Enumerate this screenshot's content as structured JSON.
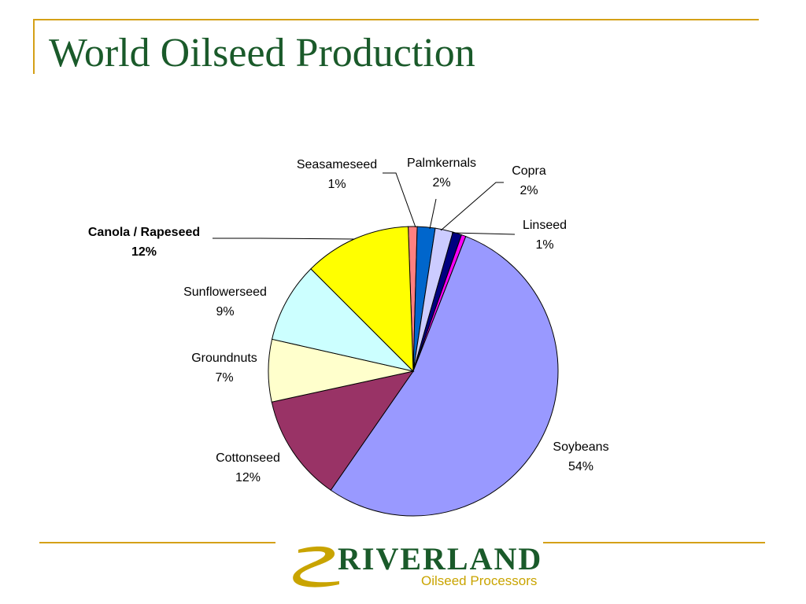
{
  "slide": {
    "title": "World Oilseed Production"
  },
  "logo": {
    "name": "RIVERLAND",
    "tagline": "Oilseed Processors",
    "colors": {
      "primary": "#1a5a2a",
      "accent": "#c9a400"
    }
  },
  "colors": {
    "frame": "#d4a017",
    "title": "#1a5a2a"
  },
  "chart_data": {
    "type": "pie",
    "start_angle_deg": -2,
    "direction": "clockwise",
    "slices": [
      {
        "label": "Seasameseed",
        "value": 1,
        "pct_label": "1%",
        "color": "#ff8080"
      },
      {
        "label": "Palmkernals",
        "value": 2,
        "pct_label": "2%",
        "color": "#0066cc"
      },
      {
        "label": "Copra",
        "value": 2,
        "pct_label": "2%",
        "color": "#ccccff"
      },
      {
        "label": "Linseed",
        "value": 1,
        "pct_label": "1%",
        "color": "#000080"
      },
      {
        "label": "",
        "value": 0.5,
        "pct_label": "",
        "color": "#ff00ff"
      },
      {
        "label": "Soybeans",
        "value": 54,
        "pct_label": "54%",
        "color": "#9999ff"
      },
      {
        "label": "Cottonseed",
        "value": 12,
        "pct_label": "12%",
        "color": "#993366"
      },
      {
        "label": "Groundnuts",
        "value": 7,
        "pct_label": "7%",
        "color": "#ffffcc"
      },
      {
        "label": "Sunflowerseed",
        "value": 9,
        "pct_label": "9%",
        "color": "#ccffff"
      },
      {
        "label": "Canola / Rapeseed",
        "value": 12,
        "pct_label": "12%",
        "color": "#ffff00",
        "bold": true
      }
    ]
  }
}
